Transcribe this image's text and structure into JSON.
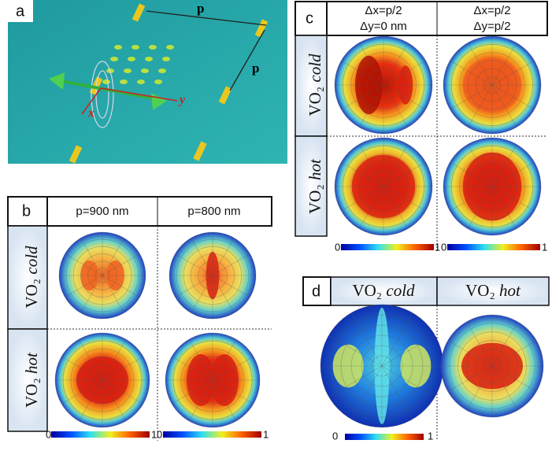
{
  "panel_a": {
    "label": "a",
    "period_labels": [
      "p",
      "p"
    ],
    "axis_labels": [
      "x",
      "y"
    ]
  },
  "panel_b": {
    "label": "b",
    "columns": [
      "p=900 nm",
      "p=800 nm"
    ],
    "rows": [
      {
        "formula": "VO₂",
        "state": "cold"
      },
      {
        "formula": "VO₂",
        "state": "hot"
      }
    ],
    "colorbars": [
      {
        "min": 0,
        "max": 1
      },
      {
        "min": 0,
        "max": 1
      }
    ]
  },
  "panel_c": {
    "label": "c",
    "columns": [
      [
        "Δx=p/2",
        "Δy=0 nm"
      ],
      [
        "Δx=p/2",
        "Δy=p/2"
      ]
    ],
    "rows": [
      {
        "formula": "VO₂",
        "state": "cold"
      },
      {
        "formula": "VO₂",
        "state": "hot"
      }
    ],
    "colorbars": [
      {
        "min": 0,
        "max": 1
      },
      {
        "min": 0,
        "max": 1
      }
    ]
  },
  "panel_d": {
    "label": "d",
    "columns": [
      {
        "formula": "VO₂",
        "state": "cold"
      },
      {
        "formula": "VO₂",
        "state": "hot"
      }
    ],
    "colorbar": {
      "min": 0,
      "max": 1
    }
  }
}
